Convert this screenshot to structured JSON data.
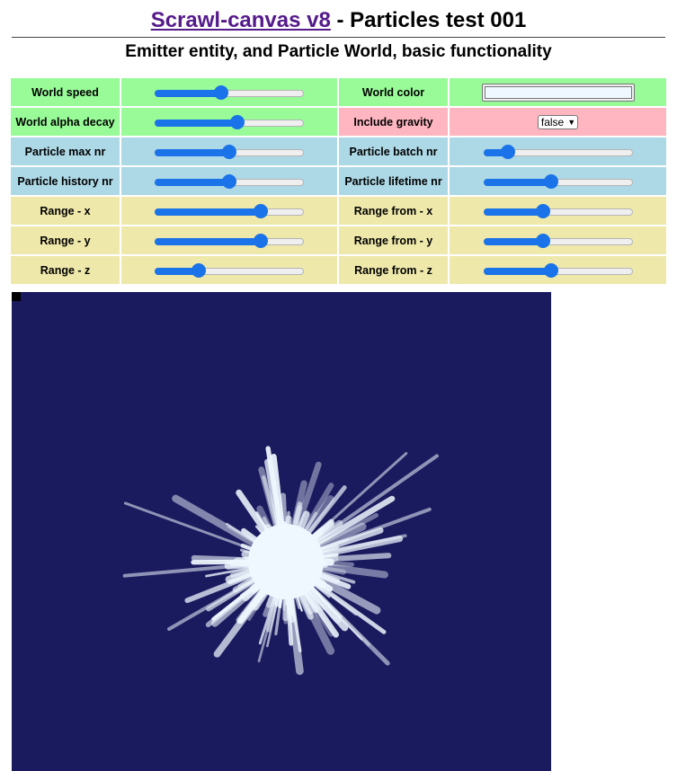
{
  "header": {
    "link_text": "Scrawl-canvas v8",
    "title_rest": " - Particles test 001",
    "subtitle": "Emitter entity, and Particle World, basic functionality"
  },
  "controls": {
    "world_speed": {
      "label": "World speed",
      "value": 0.44
    },
    "world_color": {
      "label": "World color",
      "value": "#f0f8ff"
    },
    "world_alpha_decay": {
      "label": "World alpha decay",
      "value": 0.56
    },
    "include_gravity": {
      "label": "Include gravity",
      "value": "false"
    },
    "particle_max_nr": {
      "label": "Particle max nr",
      "value": 0.5
    },
    "particle_batch_nr": {
      "label": "Particle batch nr",
      "value": 0.13
    },
    "particle_history_nr": {
      "label": "Particle history nr",
      "value": 0.5
    },
    "particle_lifetime_nr": {
      "label": "Particle lifetime nr",
      "value": 0.45
    },
    "range_x": {
      "label": "Range - x",
      "value": 0.73
    },
    "range_from_x": {
      "label": "Range from - x",
      "value": 0.39
    },
    "range_y": {
      "label": "Range - y",
      "value": 0.73
    },
    "range_from_y": {
      "label": "Range from - y",
      "value": 0.39
    },
    "range_z": {
      "label": "Range - z",
      "value": 0.27
    },
    "range_from_z": {
      "label": "Range from - z",
      "value": 0.45
    }
  },
  "colors": {
    "row_world": "#98fb98",
    "row_gravity": "#ffb6c1",
    "row_particle": "#add8e6",
    "row_range": "#eee8aa",
    "canvas_background": "#1a1a5e",
    "particle_color": "#f0f8ff",
    "slider_accent": "#1a73e8"
  }
}
